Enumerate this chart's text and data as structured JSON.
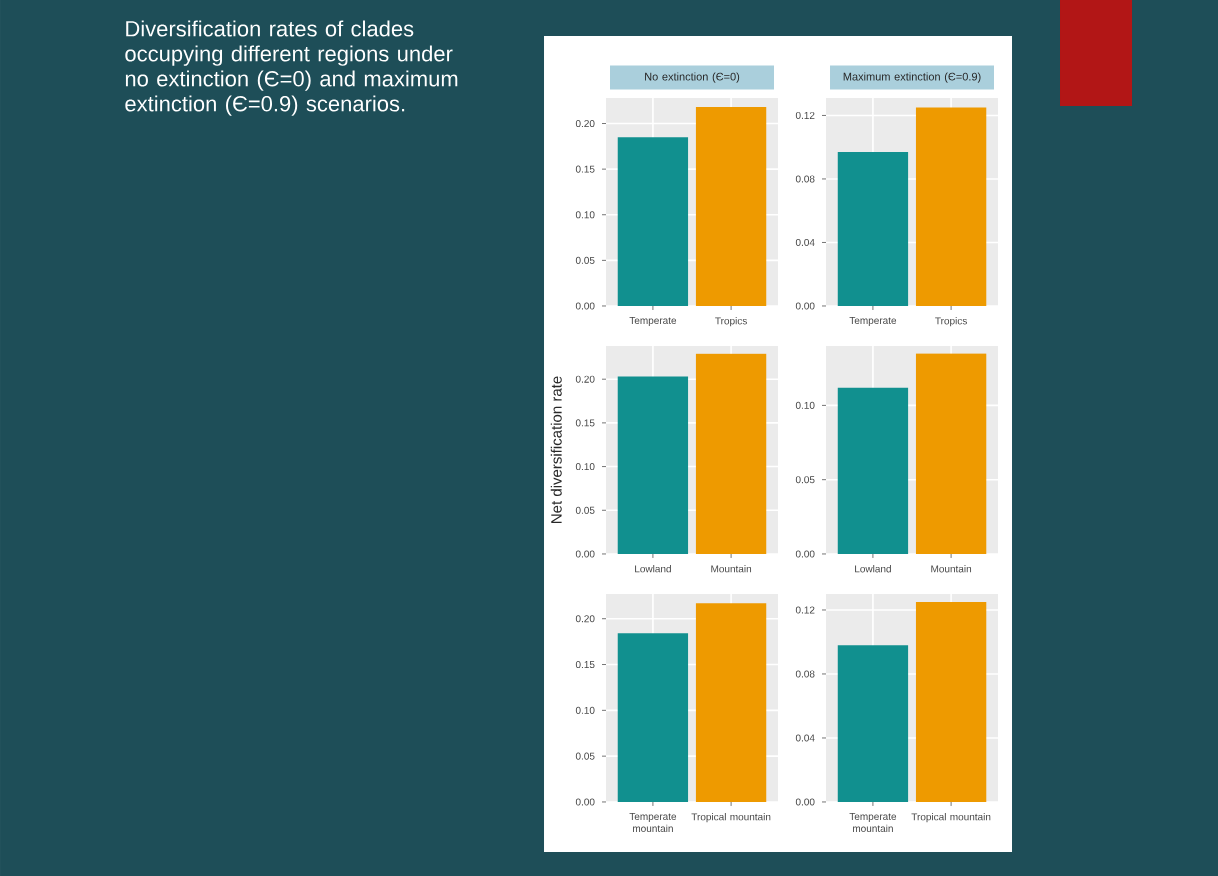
{
  "chart_data": [
    {
      "type": "other",
      "title": "Diversification rates of clades occupying different regions under no extinction (Є=0) and maximum extinction (Є=0.9) scenarios."
    },
    {
      "type": "bar",
      "title": "No extinction (Є=0)",
      "categories": [
        "Temperate",
        "Tropics"
      ],
      "values": [
        0.185,
        0.218
      ],
      "colors": [
        "#11908f",
        "#ee9a00"
      ],
      "ylim": [
        0,
        0.228
      ],
      "yticks": [
        {
          "value": 0,
          "label": "0.00"
        },
        {
          "value": 0.05,
          "label": "0.05"
        },
        {
          "value": 0.1,
          "label": "0.10"
        },
        {
          "value": 0.15,
          "label": "0.15"
        },
        {
          "value": 0.2,
          "label": "0.20"
        }
      ],
      "grid": true
    },
    {
      "type": "bar",
      "title": "Maximum extinction (Є=0.9)",
      "categories": [
        "Temperate",
        "Tropics"
      ],
      "values": [
        0.097,
        0.125
      ],
      "colors": [
        "#11908f",
        "#ee9a00"
      ],
      "ylim": [
        0,
        0.131
      ],
      "yticks": [
        {
          "value": 0,
          "label": "0.00"
        },
        {
          "value": 0.04,
          "label": "0.04"
        },
        {
          "value": 0.08,
          "label": "0.08"
        },
        {
          "value": 0.12,
          "label": "0.12"
        }
      ],
      "grid": true
    },
    {
      "type": "bar",
      "ylabel": "Net diversification rate",
      "categories": [
        "Lowland",
        "Mountain"
      ],
      "values": [
        0.203,
        0.229
      ],
      "colors": [
        "#11908f",
        "#ee9a00"
      ],
      "ylim": [
        0,
        0.238
      ],
      "yticks": [
        {
          "value": 0,
          "label": "0.00"
        },
        {
          "value": 0.05,
          "label": "0.05"
        },
        {
          "value": 0.1,
          "label": "0.10"
        },
        {
          "value": 0.15,
          "label": "0.15"
        },
        {
          "value": 0.2,
          "label": "0.20"
        }
      ],
      "grid": true
    },
    {
      "type": "bar",
      "categories": [
        "Lowland",
        "Mountain"
      ],
      "values": [
        0.112,
        0.135
      ],
      "colors": [
        "#11908f",
        "#ee9a00"
      ],
      "ylim": [
        0,
        0.14
      ],
      "yticks": [
        {
          "value": 0,
          "label": "0.00"
        },
        {
          "value": 0.05,
          "label": "0.05"
        },
        {
          "value": 0.1,
          "label": "0.10"
        }
      ],
      "grid": true
    },
    {
      "type": "bar",
      "categories": [
        "Temperate mountain",
        "Tropical mountain"
      ],
      "values": [
        0.184,
        0.217
      ],
      "colors": [
        "#11908f",
        "#ee9a00"
      ],
      "ylim": [
        0,
        0.227
      ],
      "yticks": [
        {
          "value": 0,
          "label": "0.00"
        },
        {
          "value": 0.05,
          "label": "0.05"
        },
        {
          "value": 0.1,
          "label": "0.10"
        },
        {
          "value": 0.15,
          "label": "0.15"
        },
        {
          "value": 0.2,
          "label": "0.20"
        }
      ],
      "grid": true
    },
    {
      "type": "bar",
      "categories": [
        "Temperate mountain",
        "Tropical mountain"
      ],
      "values": [
        0.098,
        0.125
      ],
      "colors": [
        "#11908f",
        "#ee9a00"
      ],
      "ylim": [
        0,
        0.13
      ],
      "yticks": [
        {
          "value": 0,
          "label": "0.00"
        },
        {
          "value": 0.04,
          "label": "0.04"
        },
        {
          "value": 0.08,
          "label": "0.08"
        },
        {
          "value": 0.12,
          "label": "0.12"
        }
      ],
      "grid": true
    }
  ]
}
